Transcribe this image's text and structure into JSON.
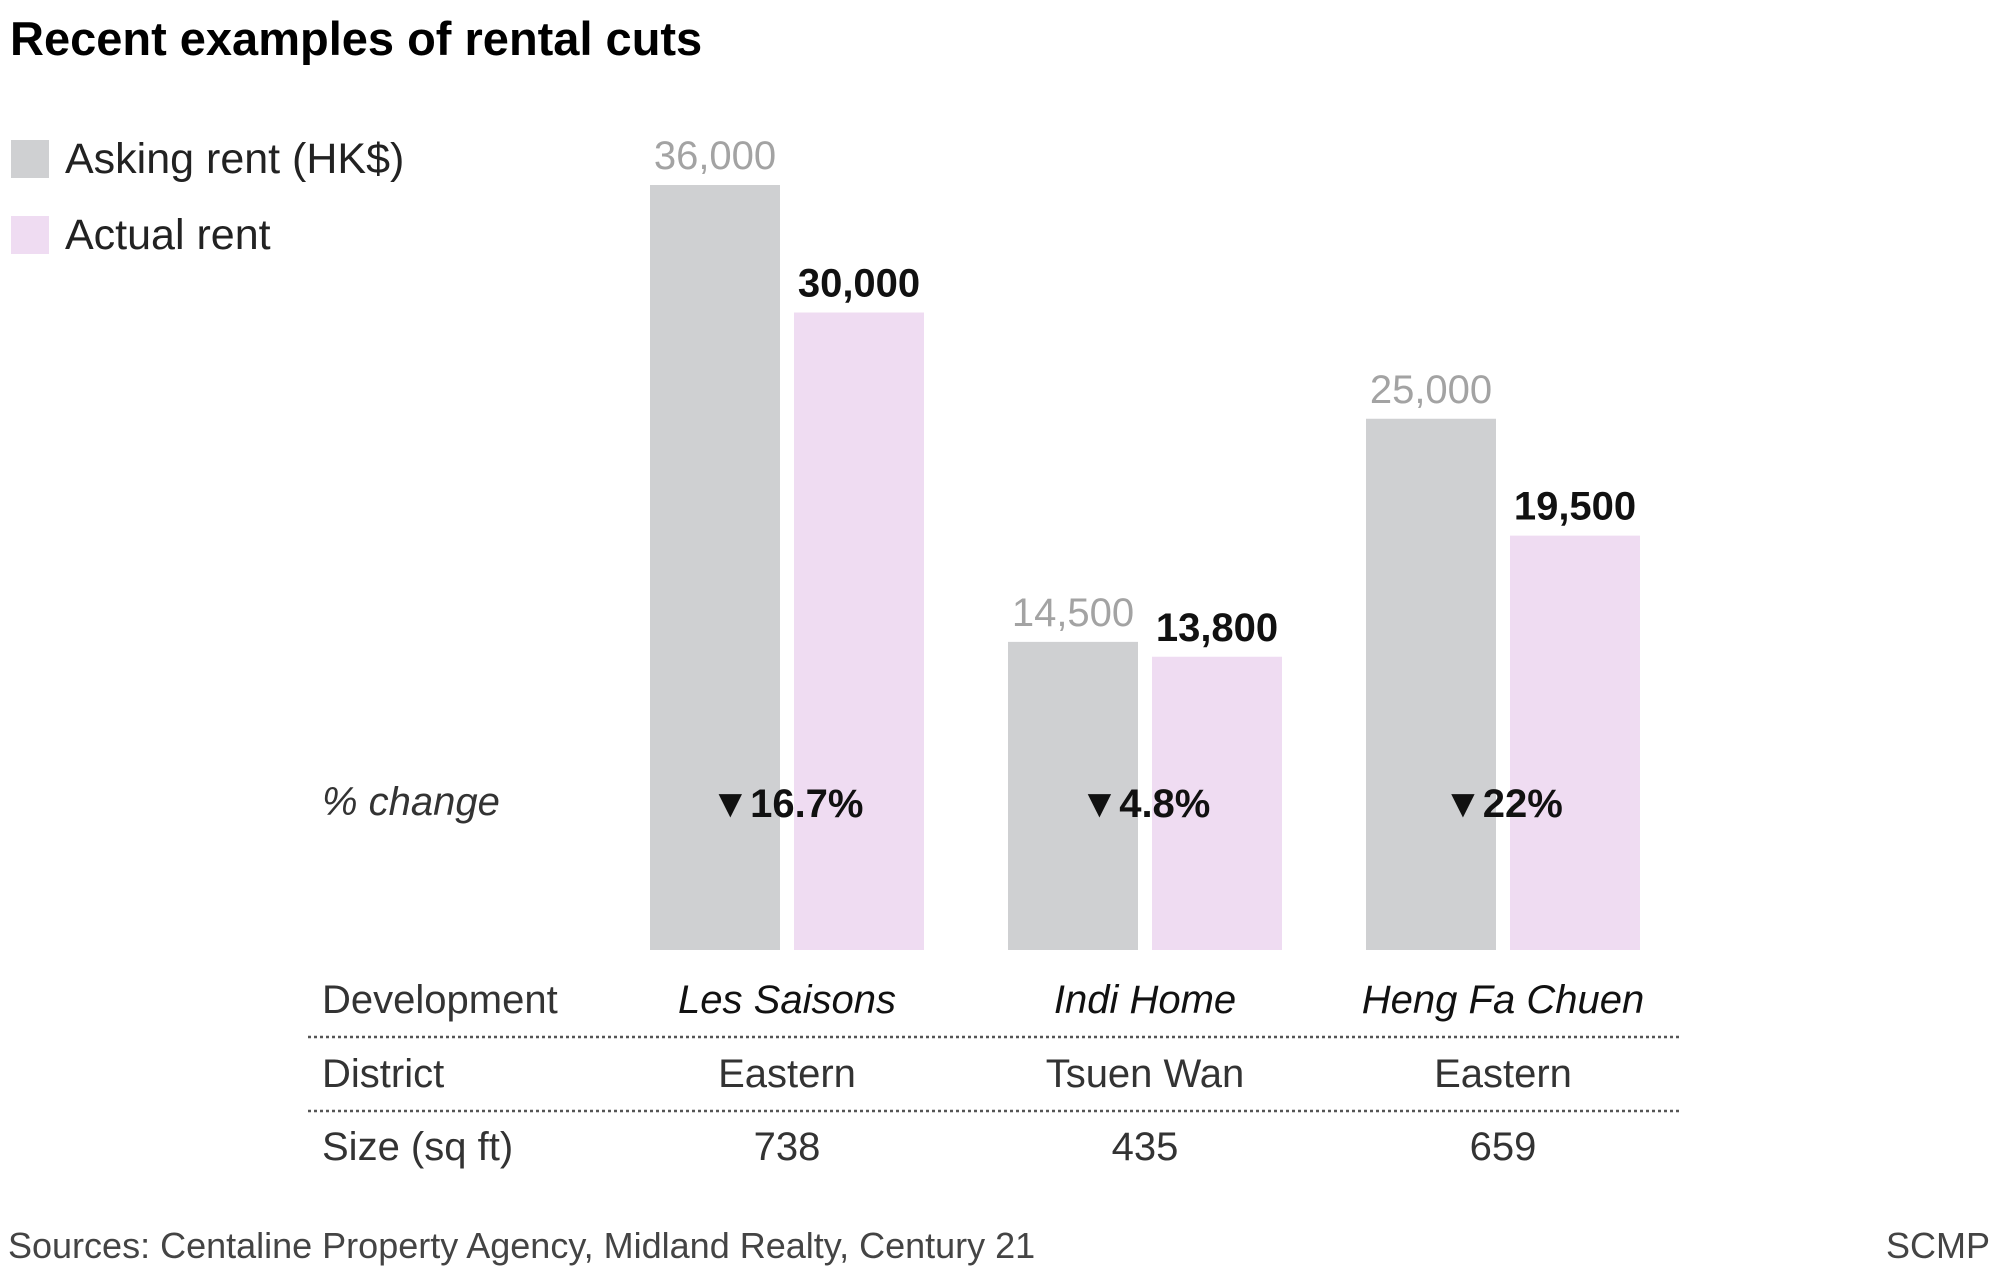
{
  "title": "Recent examples of rental cuts",
  "legend": [
    {
      "label": "Asking rent (HK$)",
      "color": "#cfd0d2"
    },
    {
      "label": "Actual rent",
      "color": "#efdcf2"
    }
  ],
  "chart_data": {
    "type": "bar",
    "title": "Recent examples of rental cuts",
    "categories": [
      "Les Saisons",
      "Indi Home",
      "Heng Fa Chuen"
    ],
    "series": [
      {
        "name": "Asking rent (HK$)",
        "values": [
          36000,
          14500,
          25000
        ],
        "labels": [
          "36,000",
          "14,500",
          "25,000"
        ],
        "color": "#cfd0d2"
      },
      {
        "name": "Actual rent",
        "values": [
          30000,
          13800,
          19500
        ],
        "labels": [
          "30,000",
          "13,800",
          "19,500"
        ],
        "color": "#efdcf2"
      }
    ],
    "pct_change_title": "% change",
    "pct_change": [
      "▼16.7%",
      "▼4.8%",
      "▼22%"
    ],
    "ylim": [
      0,
      36000
    ]
  },
  "table": {
    "rows": [
      {
        "header": "Development",
        "values": [
          "Les Saisons",
          "Indi Home",
          "Heng Fa Chuen"
        ]
      },
      {
        "header": "District",
        "values": [
          "Eastern",
          "Tsuen Wan",
          "Eastern"
        ]
      },
      {
        "header": "Size (sq ft)",
        "values": [
          "738",
          "435",
          "659"
        ]
      }
    ]
  },
  "source": "Sources: Centaline Property Agency, Midland Realty, Century 21",
  "credit": "SCMP"
}
